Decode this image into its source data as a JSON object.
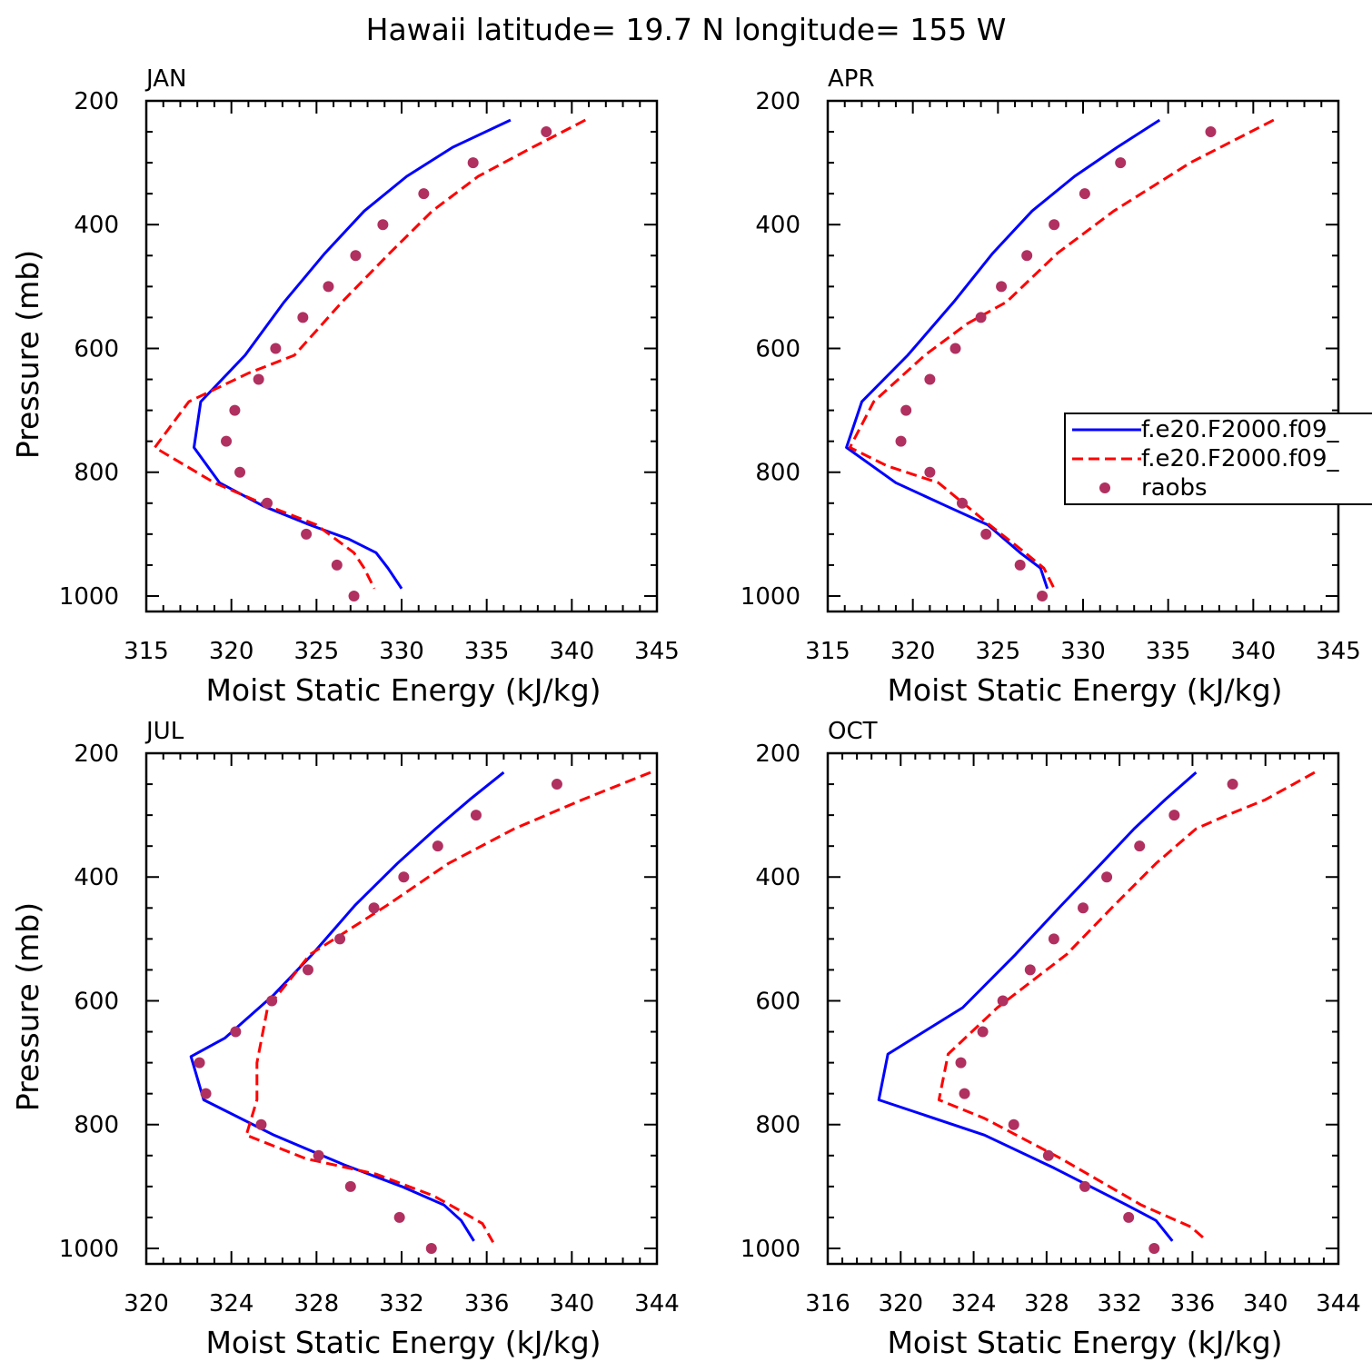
{
  "figure": {
    "title": "Hawaii  latitude= 19.7 N longitude= 155 W"
  },
  "legend": {
    "entries": [
      {
        "label": "f.e20.F2000.f09_",
        "color": "#0000ff",
        "style": "solid"
      },
      {
        "label": "f.e20.F2000.f09_",
        "color": "#ff0000",
        "style": "dashed"
      },
      {
        "label": "raobs",
        "color": "#b03060",
        "style": "marker"
      }
    ]
  },
  "colors": {
    "model1": "#0000ff",
    "model2": "#ff0000",
    "raobs": "#b03060",
    "axis": "#000000"
  },
  "chart_data": [
    {
      "type": "line",
      "title": "JAN",
      "xlabel": "Moist Static Energy (kJ/kg)",
      "ylabel": "Pressure (mb)",
      "xlim": [
        315,
        345
      ],
      "xticks": [
        315,
        320,
        325,
        330,
        335,
        340,
        345
      ],
      "ylim": [
        1025,
        200
      ],
      "yticks": [
        200,
        400,
        600,
        800,
        1000
      ],
      "series": [
        {
          "name": "f.e20.F2000.f09_",
          "kind": "solid",
          "x": [
            336.4,
            333.0,
            330.3,
            327.8,
            325.5,
            323.1,
            320.8,
            318.2,
            317.8,
            319.3,
            321.9,
            324.6,
            326.9,
            328.5,
            329.2,
            330.0
          ],
          "y": [
            231,
            275,
            322,
            378,
            446,
            525,
            611,
            686,
            760,
            817,
            855,
            885,
            908,
            930,
            955,
            988
          ]
        },
        {
          "name": "f.e20.F2000.f09_",
          "kind": "dashed",
          "x": [
            340.8,
            337.7,
            334.5,
            331.8,
            329.3,
            326.5,
            323.7,
            321.0,
            317.5,
            315.5,
            319.0,
            322.2,
            325.0,
            327.2,
            327.8,
            328.4
          ],
          "y": [
            231,
            275,
            322,
            378,
            446,
            525,
            611,
            640,
            686,
            760,
            817,
            855,
            885,
            930,
            955,
            988
          ]
        },
        {
          "name": "raobs",
          "kind": "marker",
          "x": [
            338.5,
            334.2,
            331.3,
            328.9,
            327.3,
            325.7,
            324.2,
            322.6,
            321.6,
            320.2,
            319.7,
            320.5,
            322.1,
            324.4,
            326.2,
            327.2
          ],
          "y": [
            250,
            300,
            350,
            400,
            450,
            500,
            550,
            600,
            650,
            700,
            750,
            800,
            850,
            900,
            950,
            1000
          ]
        }
      ]
    },
    {
      "type": "line",
      "title": "APR",
      "xlabel": "Moist Static Energy (kJ/kg)",
      "ylabel": "Pressure (mb)",
      "xlim": [
        315,
        345
      ],
      "xticks": [
        315,
        320,
        325,
        330,
        335,
        340,
        345
      ],
      "ylim": [
        1025,
        200
      ],
      "yticks": [
        200,
        400,
        600,
        800,
        1000
      ],
      "series": [
        {
          "name": "f.e20.F2000.f09_",
          "kind": "solid",
          "x": [
            334.5,
            332.0,
            329.5,
            327.0,
            324.7,
            322.4,
            319.7,
            317.0,
            316.1,
            319.0,
            322.0,
            324.4,
            326.3,
            327.5,
            327.9
          ],
          "y": [
            231,
            275,
            322,
            378,
            446,
            525,
            611,
            686,
            760,
            817,
            855,
            885,
            930,
            955,
            988
          ]
        },
        {
          "name": "f.e20.F2000.f09_",
          "kind": "dashed",
          "x": [
            341.2,
            336.3,
            331.8,
            328.5,
            325.5,
            323.2,
            320.7,
            317.7,
            316.3,
            318.5,
            321.5,
            324.5,
            326.6,
            327.7,
            328.3
          ],
          "y": [
            231,
            300,
            378,
            446,
            525,
            560,
            611,
            686,
            760,
            790,
            817,
            885,
            930,
            955,
            988
          ]
        },
        {
          "name": "raobs",
          "kind": "marker",
          "x": [
            337.5,
            332.2,
            330.1,
            328.3,
            326.7,
            325.2,
            324.0,
            322.5,
            321.0,
            319.6,
            319.3,
            321.0,
            322.9,
            324.3,
            326.3,
            327.6
          ],
          "y": [
            250,
            300,
            350,
            400,
            450,
            500,
            550,
            600,
            650,
            700,
            750,
            800,
            850,
            900,
            950,
            1000
          ]
        }
      ]
    },
    {
      "type": "line",
      "title": "JUL",
      "xlabel": "Moist Static Energy (kJ/kg)",
      "ylabel": "Pressure (mb)",
      "xlim": [
        320,
        344
      ],
      "xticks": [
        320,
        324,
        328,
        332,
        336,
        340,
        344
      ],
      "ylim": [
        1025,
        200
      ],
      "yticks": [
        200,
        400,
        600,
        800,
        1000
      ],
      "series": [
        {
          "name": "f.e20.F2000.f09_",
          "kind": "solid",
          "x": [
            336.8,
            335.2,
            333.6,
            331.8,
            329.8,
            327.8,
            326.0,
            323.7,
            322.1,
            322.7,
            326.0,
            329.3,
            332.0,
            334.0,
            334.8,
            335.4
          ],
          "y": [
            231,
            275,
            322,
            378,
            446,
            525,
            590,
            660,
            690,
            760,
            817,
            865,
            900,
            930,
            955,
            988
          ]
        },
        {
          "name": "f.e20.F2000.f09_",
          "kind": "dashed",
          "x": [
            343.7,
            340.5,
            337.3,
            334.2,
            331.3,
            329.3,
            327.7,
            325.7,
            325.2,
            325.2,
            324.7,
            327.5,
            330.8,
            333.5,
            334.8,
            335.8,
            336.3
          ],
          "y": [
            231,
            275,
            322,
            378,
            446,
            490,
            525,
            611,
            700,
            760,
            817,
            855,
            880,
            915,
            940,
            960,
            990
          ]
        },
        {
          "name": "raobs",
          "kind": "marker",
          "x": [
            339.3,
            335.5,
            333.7,
            332.1,
            330.7,
            329.1,
            327.6,
            325.9,
            324.2,
            322.5,
            322.8,
            325.4,
            328.1,
            329.6,
            331.9,
            333.4
          ],
          "y": [
            250,
            300,
            350,
            400,
            450,
            500,
            550,
            600,
            650,
            700,
            750,
            800,
            850,
            900,
            950,
            1000
          ]
        }
      ]
    },
    {
      "type": "line",
      "title": "OCT",
      "xlabel": "Moist Static Energy (kJ/kg)",
      "ylabel": "Pressure (mb)",
      "xlim": [
        316,
        344
      ],
      "xticks": [
        316,
        320,
        324,
        328,
        332,
        336,
        340,
        344
      ],
      "ylim": [
        1025,
        200
      ],
      "yticks": [
        200,
        400,
        600,
        800,
        1000
      ],
      "series": [
        {
          "name": "f.e20.F2000.f09_",
          "kind": "solid",
          "x": [
            336.2,
            334.5,
            332.8,
            331.0,
            328.8,
            326.3,
            323.4,
            319.3,
            318.8,
            324.6,
            328.4,
            332.4,
            334.0,
            334.9
          ],
          "y": [
            231,
            275,
            322,
            378,
            446,
            525,
            611,
            686,
            760,
            817,
            870,
            930,
            955,
            988
          ]
        },
        {
          "name": "f.e20.F2000.f09_",
          "kind": "dashed",
          "x": [
            342.7,
            340.0,
            337.9,
            336.2,
            334.0,
            331.7,
            329.1,
            325.3,
            322.6,
            322.1,
            324.6,
            328.8,
            333.2,
            335.9,
            336.8
          ],
          "y": [
            231,
            275,
            300,
            322,
            378,
            446,
            525,
            611,
            686,
            760,
            790,
            855,
            930,
            965,
            988
          ]
        },
        {
          "name": "raobs",
          "kind": "marker",
          "x": [
            338.2,
            335.0,
            333.1,
            331.3,
            330.0,
            328.4,
            327.1,
            325.6,
            324.5,
            323.3,
            323.5,
            326.2,
            328.1,
            330.1,
            332.5,
            333.9
          ],
          "y": [
            250,
            300,
            350,
            400,
            450,
            500,
            550,
            600,
            650,
            700,
            750,
            800,
            850,
            900,
            950,
            1000
          ]
        }
      ]
    }
  ]
}
